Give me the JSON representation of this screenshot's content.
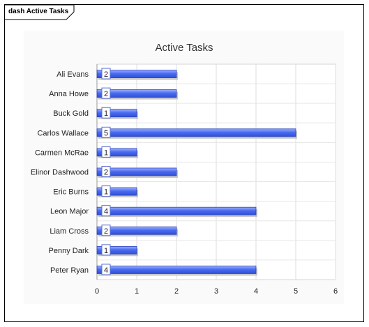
{
  "frame": {
    "tab_label": "dash Active Tasks"
  },
  "chart_data": {
    "type": "bar",
    "orientation": "horizontal",
    "title": "Active Tasks",
    "categories": [
      "Ali Evans",
      "Anna Howe",
      "Buck Gold",
      "Carlos Wallace",
      "Carmen McRae",
      "Elinor Dashwood",
      "Eric Burns",
      "Leon Major",
      "Liam Cross",
      "Penny Dark",
      "Peter Ryan"
    ],
    "values": [
      2,
      2,
      1,
      5,
      1,
      2,
      1,
      4,
      2,
      1,
      4
    ],
    "xlim": [
      0,
      6
    ],
    "xticks": [
      "0",
      "1",
      "2",
      "3",
      "4",
      "5",
      "6"
    ],
    "grid": true,
    "bar_color": "#4a6cf0",
    "data_labels": true
  }
}
